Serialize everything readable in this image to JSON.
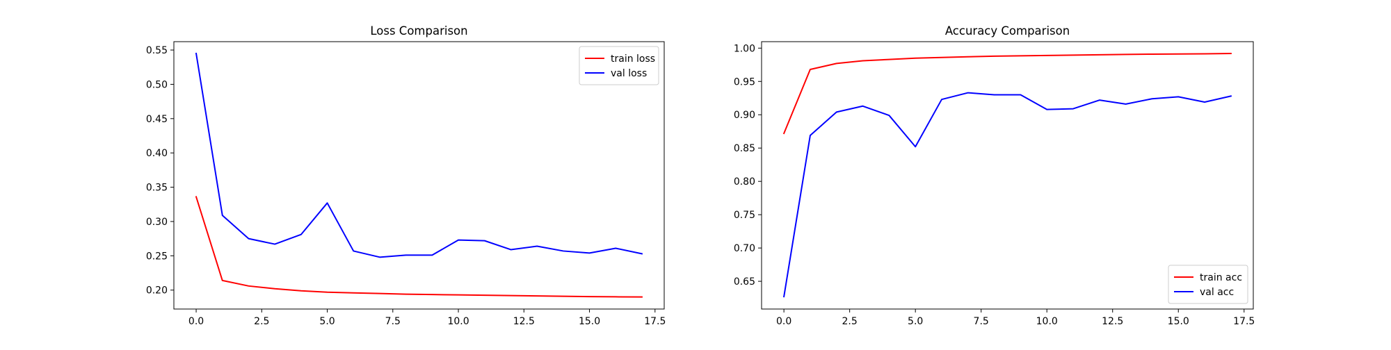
{
  "chart_data": [
    {
      "type": "line",
      "title": "Loss Comparison",
      "xlabel": "",
      "ylabel": "",
      "xlim": [
        -0.85,
        17.85
      ],
      "ylim": [
        0.1724,
        0.5622
      ],
      "x_ticks": [
        0.0,
        2.5,
        5.0,
        7.5,
        10.0,
        12.5,
        15.0,
        17.5
      ],
      "x_tick_labels": [
        "0.0",
        "2.5",
        "5.0",
        "7.5",
        "10.0",
        "12.5",
        "15.0",
        "17.5"
      ],
      "y_ticks": [
        0.2,
        0.25,
        0.3,
        0.35,
        0.4,
        0.45,
        0.5,
        0.55
      ],
      "y_tick_labels": [
        "0.20",
        "0.25",
        "0.30",
        "0.35",
        "0.40",
        "0.45",
        "0.50",
        "0.55"
      ],
      "grid": false,
      "legend_position": "top-right",
      "x": [
        0,
        1,
        2,
        3,
        4,
        5,
        6,
        7,
        8,
        9,
        10,
        11,
        12,
        13,
        14,
        15,
        16,
        17
      ],
      "series": [
        {
          "name": "train loss",
          "color": "#ff0000",
          "values": [
            0.336,
            0.214,
            0.206,
            0.202,
            0.199,
            0.197,
            0.196,
            0.195,
            0.194,
            0.1935,
            0.193,
            0.1925,
            0.192,
            0.1915,
            0.191,
            0.1905,
            0.1902,
            0.19
          ]
        },
        {
          "name": "val loss",
          "color": "#0000ff",
          "values": [
            0.545,
            0.309,
            0.275,
            0.267,
            0.281,
            0.327,
            0.257,
            0.248,
            0.251,
            0.251,
            0.273,
            0.272,
            0.259,
            0.264,
            0.257,
            0.254,
            0.261,
            0.253
          ]
        }
      ]
    },
    {
      "type": "line",
      "title": "Accuracy Comparison",
      "xlabel": "",
      "ylabel": "",
      "xlim": [
        -0.85,
        17.85
      ],
      "ylim": [
        0.6084,
        1.0097
      ],
      "x_ticks": [
        0.0,
        2.5,
        5.0,
        7.5,
        10.0,
        12.5,
        15.0,
        17.5
      ],
      "x_tick_labels": [
        "0.0",
        "2.5",
        "5.0",
        "7.5",
        "10.0",
        "12.5",
        "15.0",
        "17.5"
      ],
      "y_ticks": [
        0.65,
        0.7,
        0.75,
        0.8,
        0.85,
        0.9,
        0.95,
        1.0
      ],
      "y_tick_labels": [
        "0.65",
        "0.70",
        "0.75",
        "0.80",
        "0.85",
        "0.90",
        "0.95",
        "1.00"
      ],
      "grid": false,
      "legend_position": "bottom-right",
      "x": [
        0,
        1,
        2,
        3,
        4,
        5,
        6,
        7,
        8,
        9,
        10,
        11,
        12,
        13,
        14,
        15,
        16,
        17
      ],
      "series": [
        {
          "name": "train acc",
          "color": "#ff0000",
          "values": [
            0.872,
            0.968,
            0.977,
            0.981,
            0.983,
            0.985,
            0.986,
            0.987,
            0.988,
            0.9885,
            0.989,
            0.9895,
            0.99,
            0.9905,
            0.991,
            0.9912,
            0.9915,
            0.992
          ]
        },
        {
          "name": "val acc",
          "color": "#0000ff",
          "values": [
            0.627,
            0.869,
            0.904,
            0.913,
            0.899,
            0.852,
            0.923,
            0.933,
            0.93,
            0.93,
            0.908,
            0.909,
            0.922,
            0.916,
            0.924,
            0.927,
            0.919,
            0.928
          ]
        }
      ]
    }
  ]
}
